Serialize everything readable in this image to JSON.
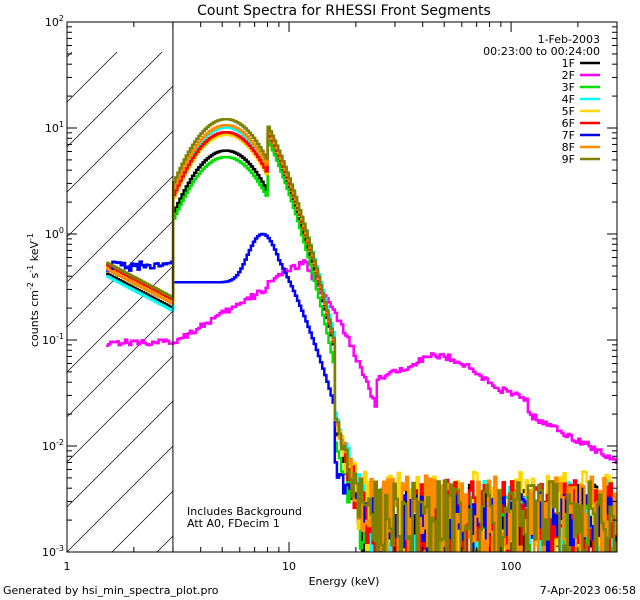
{
  "chart_data": {
    "type": "line",
    "title": "Count Spectra for RHESSI Front Segments",
    "xlabel": "Energy (keV)",
    "ylabel_main": "counts cm",
    "ylabel_exp1": "-2",
    "ylabel_mid": " s",
    "ylabel_exp2": "-1",
    "ylabel_end": " keV",
    "ylabel_exp3": "-1",
    "xscale": "log",
    "yscale": "log",
    "xlim": [
      1,
      300
    ],
    "ylim": [
      0.001,
      100
    ],
    "x_ticks": [
      {
        "value": 1,
        "label": "1"
      },
      {
        "value": 10,
        "label": "10"
      },
      {
        "value": 100,
        "label": "100"
      }
    ],
    "y_ticks": [
      {
        "value": 100,
        "base": "10",
        "exp": "2"
      },
      {
        "value": 10,
        "base": "10",
        "exp": "1"
      },
      {
        "value": 1,
        "base": "10",
        "exp": "0"
      },
      {
        "value": 0.1,
        "base": "10",
        "exp": "-1"
      },
      {
        "value": 0.01,
        "base": "10",
        "exp": "-2"
      },
      {
        "value": 0.001,
        "base": "10",
        "exp": "-3"
      }
    ],
    "shaded_region_kev": [
      1,
      3
    ],
    "date": "1-Feb-2003",
    "time_range": "00:23:00 to 00:24:00",
    "annotation_line1": "Includes Background",
    "annotation_line2": "Att A0, FDecim 1",
    "footer_left": "Generated by hsi_min_spectra_plot.pro",
    "footer_right": "7-Apr-2023 06:58",
    "series": [
      {
        "name": "1F",
        "color": "#000000",
        "low_scale": 0.95,
        "peak": 6.0,
        "decline": 1.0,
        "noise_floor": 0.0009
      },
      {
        "name": "2F",
        "color": "#ff00ff",
        "special": "sweep"
      },
      {
        "name": "3F",
        "color": "#00e000",
        "low_scale": 1.05,
        "peak": 5.2,
        "decline": 1.1,
        "noise_floor": 0.0008
      },
      {
        "name": "4F",
        "color": "#00ffff",
        "low_scale": 0.9,
        "peak": 10.0,
        "decline": 0.95,
        "noise_floor": 0.001
      },
      {
        "name": "5F",
        "color": "#ffd700",
        "low_scale": 1.1,
        "peak": 8.5,
        "decline": 1.0,
        "noise_floor": 0.0012
      },
      {
        "name": "6F",
        "color": "#ff0000",
        "low_scale": 1.15,
        "peak": 9.0,
        "decline": 1.0,
        "noise_floor": 0.001
      },
      {
        "name": "7F",
        "color": "#0000ff",
        "special": "low"
      },
      {
        "name": "8F",
        "color": "#ff8c00",
        "low_scale": 1.05,
        "peak": 10.5,
        "decline": 1.0,
        "noise_floor": 0.0011
      },
      {
        "name": "9F",
        "color": "#808000",
        "low_scale": 1.2,
        "peak": 12.0,
        "decline": 1.0,
        "noise_floor": 0.001
      }
    ]
  }
}
